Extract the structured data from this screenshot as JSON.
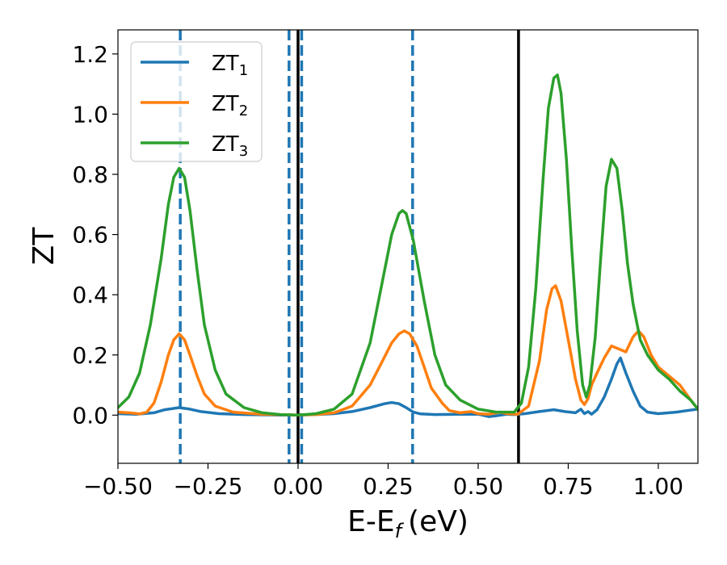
{
  "chart_data": {
    "type": "line",
    "xlabel": "E-E",
    "xlabel_sub": "f",
    "xlabel_unit": "(eV)",
    "ylabel": "ZT",
    "xlim": [
      -0.5,
      1.11
    ],
    "ylim": [
      -0.16,
      1.28
    ],
    "xticks": [
      -0.5,
      -0.25,
      0.0,
      0.25,
      0.5,
      0.75,
      1.0
    ],
    "xtick_labels": [
      "−0.50",
      "−0.25",
      "0.00",
      "0.25",
      "0.50",
      "0.75",
      "1.00"
    ],
    "yticks": [
      0.0,
      0.2,
      0.4,
      0.6,
      0.8,
      1.0,
      1.2
    ],
    "ytick_labels": [
      "0.0",
      "0.2",
      "0.4",
      "0.6",
      "0.8",
      "1.0",
      "1.2"
    ],
    "grid": false,
    "legend_position": "top-left",
    "series": [
      {
        "name": "ZT",
        "name_sub": "1",
        "color": "#1f77b4",
        "points": [
          [
            -0.5,
            0.005
          ],
          [
            -0.45,
            0.003
          ],
          [
            -0.4,
            0.008
          ],
          [
            -0.37,
            0.018
          ],
          [
            -0.33,
            0.025
          ],
          [
            -0.3,
            0.02
          ],
          [
            -0.27,
            0.012
          ],
          [
            -0.22,
            0.005
          ],
          [
            -0.15,
            0.002
          ],
          [
            -0.05,
            0.0
          ],
          [
            0.0,
            0.0
          ],
          [
            0.05,
            0.002
          ],
          [
            0.1,
            0.005
          ],
          [
            0.15,
            0.012
          ],
          [
            0.2,
            0.025
          ],
          [
            0.24,
            0.038
          ],
          [
            0.26,
            0.042
          ],
          [
            0.28,
            0.038
          ],
          [
            0.3,
            0.025
          ],
          [
            0.32,
            0.01
          ],
          [
            0.34,
            0.004
          ],
          [
            0.38,
            0.002
          ],
          [
            0.45,
            0.003
          ],
          [
            0.5,
            0.003
          ],
          [
            0.53,
            -0.005
          ],
          [
            0.55,
            -0.002
          ],
          [
            0.58,
            0.003
          ],
          [
            0.6,
            0.002
          ],
          [
            0.63,
            0.005
          ],
          [
            0.67,
            0.012
          ],
          [
            0.71,
            0.018
          ],
          [
            0.74,
            0.012
          ],
          [
            0.77,
            0.008
          ],
          [
            0.785,
            0.02
          ],
          [
            0.795,
            0.005
          ],
          [
            0.805,
            0.012
          ],
          [
            0.815,
            0.003
          ],
          [
            0.83,
            0.018
          ],
          [
            0.85,
            0.06
          ],
          [
            0.87,
            0.12
          ],
          [
            0.885,
            0.17
          ],
          [
            0.895,
            0.19
          ],
          [
            0.91,
            0.14
          ],
          [
            0.93,
            0.08
          ],
          [
            0.95,
            0.03
          ],
          [
            0.97,
            0.01
          ],
          [
            1.0,
            0.005
          ],
          [
            1.05,
            0.01
          ],
          [
            1.08,
            0.015
          ],
          [
            1.11,
            0.02
          ]
        ]
      },
      {
        "name": "ZT",
        "name_sub": "2",
        "color": "#ff7f0e",
        "points": [
          [
            -0.5,
            0.01
          ],
          [
            -0.47,
            0.008
          ],
          [
            -0.44,
            0.004
          ],
          [
            -0.42,
            0.01
          ],
          [
            -0.4,
            0.04
          ],
          [
            -0.38,
            0.11
          ],
          [
            -0.36,
            0.2
          ],
          [
            -0.345,
            0.25
          ],
          [
            -0.33,
            0.27
          ],
          [
            -0.315,
            0.25
          ],
          [
            -0.3,
            0.2
          ],
          [
            -0.28,
            0.13
          ],
          [
            -0.26,
            0.07
          ],
          [
            -0.23,
            0.03
          ],
          [
            -0.18,
            0.01
          ],
          [
            -0.1,
            0.003
          ],
          [
            0.0,
            0.0
          ],
          [
            0.05,
            0.002
          ],
          [
            0.1,
            0.008
          ],
          [
            0.15,
            0.03
          ],
          [
            0.2,
            0.1
          ],
          [
            0.23,
            0.17
          ],
          [
            0.26,
            0.24
          ],
          [
            0.28,
            0.27
          ],
          [
            0.295,
            0.28
          ],
          [
            0.31,
            0.27
          ],
          [
            0.33,
            0.23
          ],
          [
            0.35,
            0.16
          ],
          [
            0.37,
            0.09
          ],
          [
            0.4,
            0.04
          ],
          [
            0.42,
            0.015
          ],
          [
            0.45,
            0.008
          ],
          [
            0.48,
            0.012
          ],
          [
            0.5,
            0.005
          ],
          [
            0.53,
            0.003
          ],
          [
            0.56,
            0.01
          ],
          [
            0.58,
            0.005
          ],
          [
            0.61,
            0.003
          ],
          [
            0.64,
            0.03
          ],
          [
            0.67,
            0.18
          ],
          [
            0.69,
            0.35
          ],
          [
            0.705,
            0.42
          ],
          [
            0.715,
            0.43
          ],
          [
            0.73,
            0.38
          ],
          [
            0.75,
            0.25
          ],
          [
            0.77,
            0.12
          ],
          [
            0.785,
            0.05
          ],
          [
            0.795,
            0.035
          ],
          [
            0.805,
            0.055
          ],
          [
            0.815,
            0.1
          ],
          [
            0.83,
            0.14
          ],
          [
            0.85,
            0.19
          ],
          [
            0.87,
            0.23
          ],
          [
            0.89,
            0.22
          ],
          [
            0.91,
            0.21
          ],
          [
            0.93,
            0.26
          ],
          [
            0.945,
            0.28
          ],
          [
            0.96,
            0.26
          ],
          [
            0.98,
            0.2
          ],
          [
            1.0,
            0.16
          ],
          [
            1.03,
            0.13
          ],
          [
            1.06,
            0.1
          ],
          [
            1.09,
            0.05
          ],
          [
            1.11,
            0.02
          ]
        ]
      },
      {
        "name": "ZT",
        "name_sub": "3",
        "color": "#2ca02c",
        "points": [
          [
            -0.5,
            0.025
          ],
          [
            -0.47,
            0.06
          ],
          [
            -0.44,
            0.14
          ],
          [
            -0.41,
            0.3
          ],
          [
            -0.38,
            0.52
          ],
          [
            -0.36,
            0.7
          ],
          [
            -0.345,
            0.79
          ],
          [
            -0.33,
            0.82
          ],
          [
            -0.315,
            0.79
          ],
          [
            -0.3,
            0.68
          ],
          [
            -0.28,
            0.48
          ],
          [
            -0.26,
            0.3
          ],
          [
            -0.23,
            0.15
          ],
          [
            -0.2,
            0.07
          ],
          [
            -0.15,
            0.025
          ],
          [
            -0.1,
            0.008
          ],
          [
            -0.05,
            0.002
          ],
          [
            0.0,
            0.0
          ],
          [
            0.05,
            0.005
          ],
          [
            0.1,
            0.02
          ],
          [
            0.15,
            0.07
          ],
          [
            0.2,
            0.24
          ],
          [
            0.23,
            0.42
          ],
          [
            0.26,
            0.6
          ],
          [
            0.28,
            0.67
          ],
          [
            0.29,
            0.68
          ],
          [
            0.3,
            0.67
          ],
          [
            0.32,
            0.58
          ],
          [
            0.35,
            0.38
          ],
          [
            0.38,
            0.2
          ],
          [
            0.41,
            0.1
          ],
          [
            0.45,
            0.05
          ],
          [
            0.5,
            0.02
          ],
          [
            0.55,
            0.01
          ],
          [
            0.6,
            0.01
          ],
          [
            0.62,
            0.04
          ],
          [
            0.64,
            0.16
          ],
          [
            0.66,
            0.42
          ],
          [
            0.68,
            0.78
          ],
          [
            0.695,
            1.02
          ],
          [
            0.71,
            1.12
          ],
          [
            0.72,
            1.13
          ],
          [
            0.73,
            1.07
          ],
          [
            0.745,
            0.85
          ],
          [
            0.76,
            0.55
          ],
          [
            0.775,
            0.28
          ],
          [
            0.79,
            0.1
          ],
          [
            0.8,
            0.06
          ],
          [
            0.81,
            0.1
          ],
          [
            0.825,
            0.26
          ],
          [
            0.84,
            0.52
          ],
          [
            0.855,
            0.76
          ],
          [
            0.87,
            0.85
          ],
          [
            0.885,
            0.82
          ],
          [
            0.9,
            0.68
          ],
          [
            0.915,
            0.5
          ],
          [
            0.93,
            0.37
          ],
          [
            0.95,
            0.25
          ],
          [
            0.97,
            0.2
          ],
          [
            1.0,
            0.15
          ],
          [
            1.03,
            0.12
          ],
          [
            1.06,
            0.08
          ],
          [
            1.09,
            0.05
          ],
          [
            1.11,
            0.02
          ]
        ]
      }
    ],
    "vertical_lines": [
      {
        "x": -0.327,
        "style": "dashed",
        "color": "#1f77b4"
      },
      {
        "x": -0.025,
        "style": "dashed",
        "color": "#1f77b4"
      },
      {
        "x": 0.01,
        "style": "dashed",
        "color": "#1f77b4"
      },
      {
        "x": 0.318,
        "style": "dashed",
        "color": "#1f77b4"
      },
      {
        "x": 0.0,
        "style": "solid",
        "color": "#000000"
      },
      {
        "x": 0.612,
        "style": "solid",
        "color": "#000000"
      }
    ]
  }
}
